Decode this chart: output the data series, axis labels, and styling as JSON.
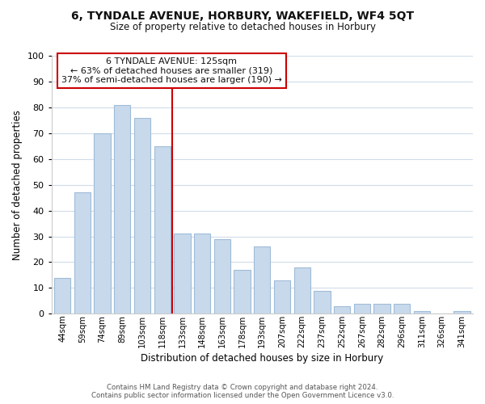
{
  "title": "6, TYNDALE AVENUE, HORBURY, WAKEFIELD, WF4 5QT",
  "subtitle": "Size of property relative to detached houses in Horbury",
  "xlabel": "Distribution of detached houses by size in Horbury",
  "ylabel": "Number of detached properties",
  "bar_labels": [
    "44sqm",
    "59sqm",
    "74sqm",
    "89sqm",
    "103sqm",
    "118sqm",
    "133sqm",
    "148sqm",
    "163sqm",
    "178sqm",
    "193sqm",
    "207sqm",
    "222sqm",
    "237sqm",
    "252sqm",
    "267sqm",
    "282sqm",
    "296sqm",
    "311sqm",
    "326sqm",
    "341sqm"
  ],
  "bar_values": [
    14,
    47,
    70,
    81,
    76,
    65,
    31,
    31,
    29,
    17,
    26,
    13,
    18,
    9,
    3,
    4,
    4,
    4,
    1,
    0,
    1
  ],
  "bar_color": "#c8d9ec",
  "bar_edge_color": "#a0bcd8",
  "ylim": [
    0,
    100
  ],
  "yticks": [
    0,
    10,
    20,
    30,
    40,
    50,
    60,
    70,
    80,
    90,
    100
  ],
  "vline_x_idx": 5.5,
  "vline_color": "#cc0000",
  "ann_title": "6 TYNDALE AVENUE: 125sqm",
  "ann_line1": "← 63% of detached houses are smaller (319)",
  "ann_line2": "37% of semi-detached houses are larger (190) →",
  "footer1": "Contains HM Land Registry data © Crown copyright and database right 2024.",
  "footer2": "Contains public sector information licensed under the Open Government Licence v3.0.",
  "background_color": "#ffffff",
  "grid_color": "#d0dcea"
}
